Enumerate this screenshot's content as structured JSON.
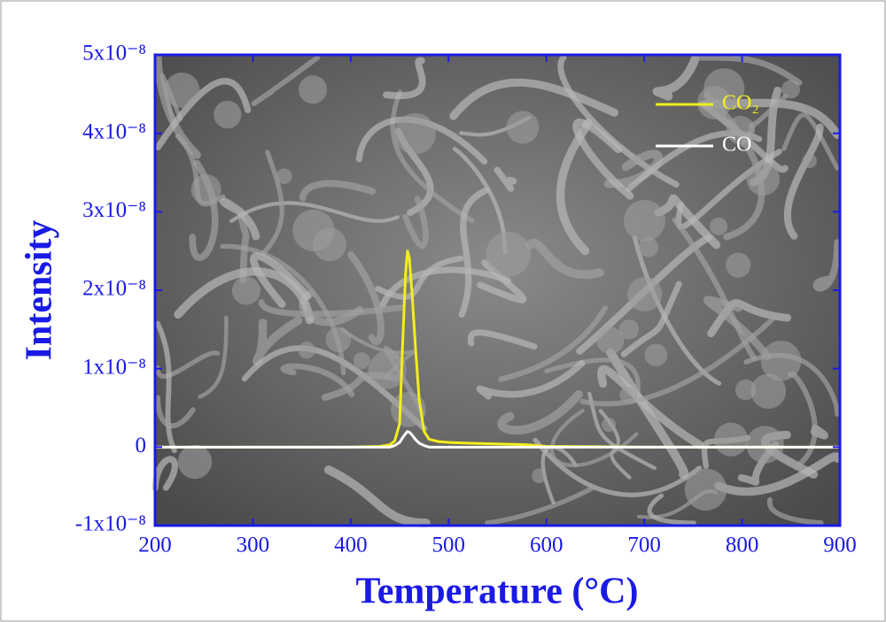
{
  "chart_data": {
    "type": "line",
    "x_label": "Temperature (°C)",
    "y_label": "Intensity",
    "xlim": [
      200,
      900
    ],
    "ylim": [
      -1e-08,
      5e-08
    ],
    "xticks": [
      200,
      300,
      400,
      500,
      600,
      700,
      800,
      900
    ],
    "yticks": [
      {
        "value": -1e-08,
        "label": "-1x10⁻⁸"
      },
      0,
      {
        "value": 1e-08,
        "label": "1x10⁻⁸"
      },
      {
        "value": 2e-08,
        "label": "2x10⁻⁸"
      },
      {
        "value": 3e-08,
        "label": "3x10⁻⁸"
      },
      {
        "value": 4e-08,
        "label": "4x10⁻⁸"
      },
      {
        "value": 5e-08,
        "label": "5x10⁻⁸"
      }
    ],
    "legend_position": "upper right",
    "x": [
      200,
      300,
      400,
      430,
      440,
      445,
      450,
      453,
      456,
      458,
      460,
      463,
      466,
      470,
      475,
      480,
      490,
      500,
      520,
      550,
      580,
      600,
      650,
      700,
      800,
      900
    ],
    "series": [
      {
        "name": "CO₂",
        "color": "#f2ee1c",
        "values": [
          0,
          0,
          0,
          1e-10,
          3e-10,
          8e-10,
          3e-09,
          1.3e-08,
          2.2e-08,
          2.5e-08,
          2.4e-08,
          1.9e-08,
          1.3e-08,
          6e-09,
          2e-09,
          1e-09,
          7e-10,
          6e-10,
          5e-10,
          4e-10,
          3e-10,
          1e-10,
          5e-11,
          0,
          0,
          0
        ]
      },
      {
        "name": "CO",
        "color": "#ffffff",
        "values": [
          0,
          0,
          0,
          0,
          0,
          2e-10,
          6e-10,
          1.2e-09,
          1.7e-09,
          2e-09,
          1.9e-09,
          1.5e-09,
          1e-09,
          5e-10,
          2e-10,
          0,
          0,
          0,
          0,
          0,
          0,
          0,
          0,
          0,
          0,
          0
        ]
      }
    ]
  }
}
